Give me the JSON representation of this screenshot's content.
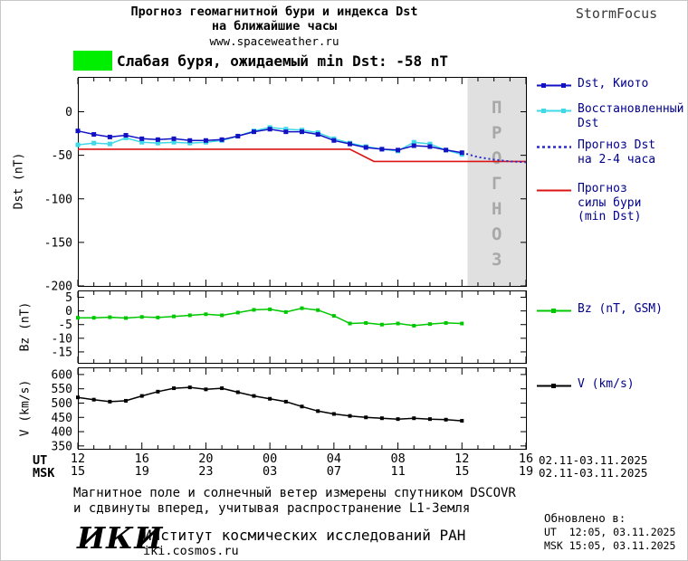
{
  "header": {
    "title_line1": "Прогноз геомагнитной бури и индекса Dst",
    "title_line2": "на ближайшие часы",
    "website": "www.spaceweather.ru",
    "brand": "StormFocus"
  },
  "banner": {
    "swatch_color": "#00ee00",
    "label": "Слабая буря, ожидаемый min Dst: -58 nT"
  },
  "forecast_region": {
    "label": "ПРОГНОЗ",
    "fill": "#e0e0e0",
    "text_color": "#a8a8a8",
    "start_hour": 24.35
  },
  "legend": {
    "kyoto_line1": "Dst, Киото",
    "restored_line1": "Восстановленный",
    "restored_line2": "Dst",
    "forecast_line1": "Прогноз Dst",
    "forecast_line2": "на 2-4 часа",
    "storm_line1": "Прогноз",
    "storm_line2": "силы бури",
    "storm_line3": "(min Dst)",
    "bz_line1": "Bz (nT, GSM)",
    "v_line1": "V (km/s)"
  },
  "axes": {
    "dst_ylabel": "Dst (nT)",
    "bz_ylabel": "Bz (nT)",
    "v_ylabel": "V (km/s)",
    "ut_row_label": "UT",
    "msk_row_label": "MSK",
    "date_range_ut": "02.11-03.11.2025",
    "date_range_msk": "02.11-03.11.2025"
  },
  "footer": {
    "note_line1": "Магнитное поле и солнечный ветер измерены спутником DSCOVR",
    "note_line2": "и сдвинуты вперед, учитывая распространение L1-Земля",
    "updated_label": "Обновлено в:",
    "updated_ut": "UT  12:05, 03.11.2025",
    "updated_msk": "MSK 15:05, 03.11.2025",
    "logo_text": "ИКИ",
    "institute": "Институт космических исследований РАН",
    "site": "iki.cosmos.ru"
  },
  "chart_data": {
    "x_axis": {
      "unit": "hours from 12:00 UT 02.11.2025",
      "xlim": [
        0,
        28
      ],
      "tick_hours": [
        0,
        4,
        8,
        12,
        16,
        20,
        24,
        28
      ],
      "labels_ut": [
        "12",
        "16",
        "20",
        "00",
        "04",
        "08",
        "12",
        "16"
      ],
      "labels_msk": [
        "15",
        "19",
        "23",
        "03",
        "07",
        "11",
        "15",
        "19"
      ]
    },
    "panels": [
      {
        "type": "line",
        "name": "dst",
        "ylabel": "Dst (nT)",
        "ylim": [
          -200,
          40
        ],
        "yticks": [
          0,
          -50,
          -100,
          -150,
          -200
        ],
        "series": [
          {
            "id": "storm-min",
            "name": "Прогноз силы бури (min Dst)",
            "color": "#dc1414",
            "width": 1.6,
            "x": [
              0,
              17,
              18.5,
              28
            ],
            "y": [
              -43,
              -43,
              -57,
              -57
            ]
          },
          {
            "id": "dst-restored",
            "name": "Восстановленный Dst",
            "color": "#3fd9e8",
            "marker": "square",
            "marker_size": 5,
            "x_start": 0,
            "x_step": 1,
            "y": [
              -38,
              -36,
              -37,
              -30,
              -35,
              -36,
              -35,
              -36,
              -35,
              -33,
              -28,
              -22,
              -18,
              -20,
              -21,
              -24,
              -31,
              -36,
              -40,
              -43,
              -45,
              -35,
              -37,
              -44,
              -49
            ]
          },
          {
            "id": "dst-kyoto",
            "name": "Dst, Киото",
            "color": "#1212c4",
            "marker": "square",
            "marker_size": 5,
            "x_start": 0,
            "x_step": 1,
            "y": [
              -22,
              -26,
              -29,
              -27,
              -31,
              -32,
              -31,
              -33,
              -33,
              -32,
              -28,
              -23,
              -20,
              -23,
              -23,
              -26,
              -33,
              -37,
              -41,
              -43,
              -44,
              -39,
              -40,
              -44,
              -47
            ]
          },
          {
            "id": "dst-forecast",
            "name": "Прогноз Dst на 2-4 часа",
            "color": "#2a2ad0",
            "width": 2,
            "dash": "2 3",
            "x": [
              24,
              25,
              26,
              27,
              28
            ],
            "y": [
              -47,
              -52,
              -55,
              -57,
              -58
            ]
          }
        ]
      },
      {
        "type": "line",
        "name": "bz",
        "ylabel": "Bz (nT)",
        "ylim": [
          -19,
          7.5
        ],
        "yticks": [
          5,
          0,
          -5,
          -10,
          -15
        ],
        "series": [
          {
            "id": "bz",
            "name": "Bz (nT, GSM)",
            "color": "#00c800",
            "marker": "square",
            "marker_size": 4,
            "x_start": 0,
            "x_step": 1,
            "y": [
              -2.5,
              -2.5,
              -2.3,
              -2.6,
              -2.2,
              -2.4,
              -2.0,
              -1.6,
              -1.2,
              -1.6,
              -0.6,
              0.4,
              0.6,
              -0.4,
              1.0,
              0.3,
              -1.8,
              -4.6,
              -4.4,
              -5.0,
              -4.6,
              -5.4,
              -4.8,
              -4.4,
              -4.6
            ]
          }
        ]
      },
      {
        "type": "line",
        "name": "v",
        "ylabel": "V (km/s)",
        "ylim": [
          340,
          625
        ],
        "yticks": [
          600,
          550,
          500,
          450,
          400,
          350
        ],
        "series": [
          {
            "id": "v",
            "name": "V (km/s)",
            "color": "#000000",
            "marker": "square",
            "marker_size": 4,
            "x_start": 0,
            "x_step": 1,
            "y": [
              520,
              512,
              505,
              508,
              525,
              540,
              552,
              555,
              548,
              552,
              538,
              525,
              515,
              505,
              488,
              472,
              462,
              455,
              450,
              447,
              444,
              447,
              444,
              442,
              438
            ]
          }
        ]
      }
    ]
  }
}
